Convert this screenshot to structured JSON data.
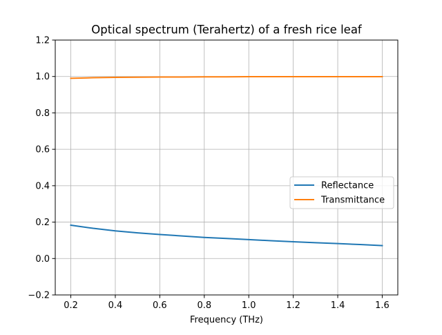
{
  "chart_data": {
    "type": "line",
    "title": "Optical spectrum (Terahertz) of a fresh rice leaf",
    "xlabel": "Frequency (THz)",
    "ylabel": "",
    "xlim": [
      0.13,
      1.67
    ],
    "ylim": [
      -0.2,
      1.2
    ],
    "xticks": [
      0.2,
      0.4,
      0.6,
      0.8,
      1.0,
      1.2,
      1.4,
      1.6
    ],
    "xtick_labels": [
      "0.2",
      "0.4",
      "0.6",
      "0.8",
      "1.0",
      "1.2",
      "1.4",
      "1.6"
    ],
    "yticks": [
      -0.2,
      0.0,
      0.2,
      0.4,
      0.6,
      0.8,
      1.0,
      1.2
    ],
    "ytick_labels": [
      "−0.2",
      "0.0",
      "0.2",
      "0.4",
      "0.6",
      "0.8",
      "1.0",
      "1.2"
    ],
    "grid": true,
    "legend_position": "center-right",
    "x": [
      0.2,
      0.3,
      0.4,
      0.5,
      0.6,
      0.7,
      0.8,
      0.9,
      1.0,
      1.1,
      1.2,
      1.3,
      1.4,
      1.5,
      1.6
    ],
    "series": [
      {
        "name": "Reflectance",
        "color": "#1f77b4",
        "values": [
          0.183,
          0.166,
          0.152,
          0.141,
          0.132,
          0.124,
          0.116,
          0.11,
          0.104,
          0.098,
          0.092,
          0.087,
          0.082,
          0.077,
          0.071
        ]
      },
      {
        "name": "Transmittance",
        "color": "#ff7f0e",
        "values": [
          0.99,
          0.993,
          0.995,
          0.996,
          0.997,
          0.997,
          0.998,
          0.998,
          0.999,
          0.999,
          0.999,
          0.999,
          0.999,
          0.999,
          0.999
        ]
      }
    ]
  }
}
